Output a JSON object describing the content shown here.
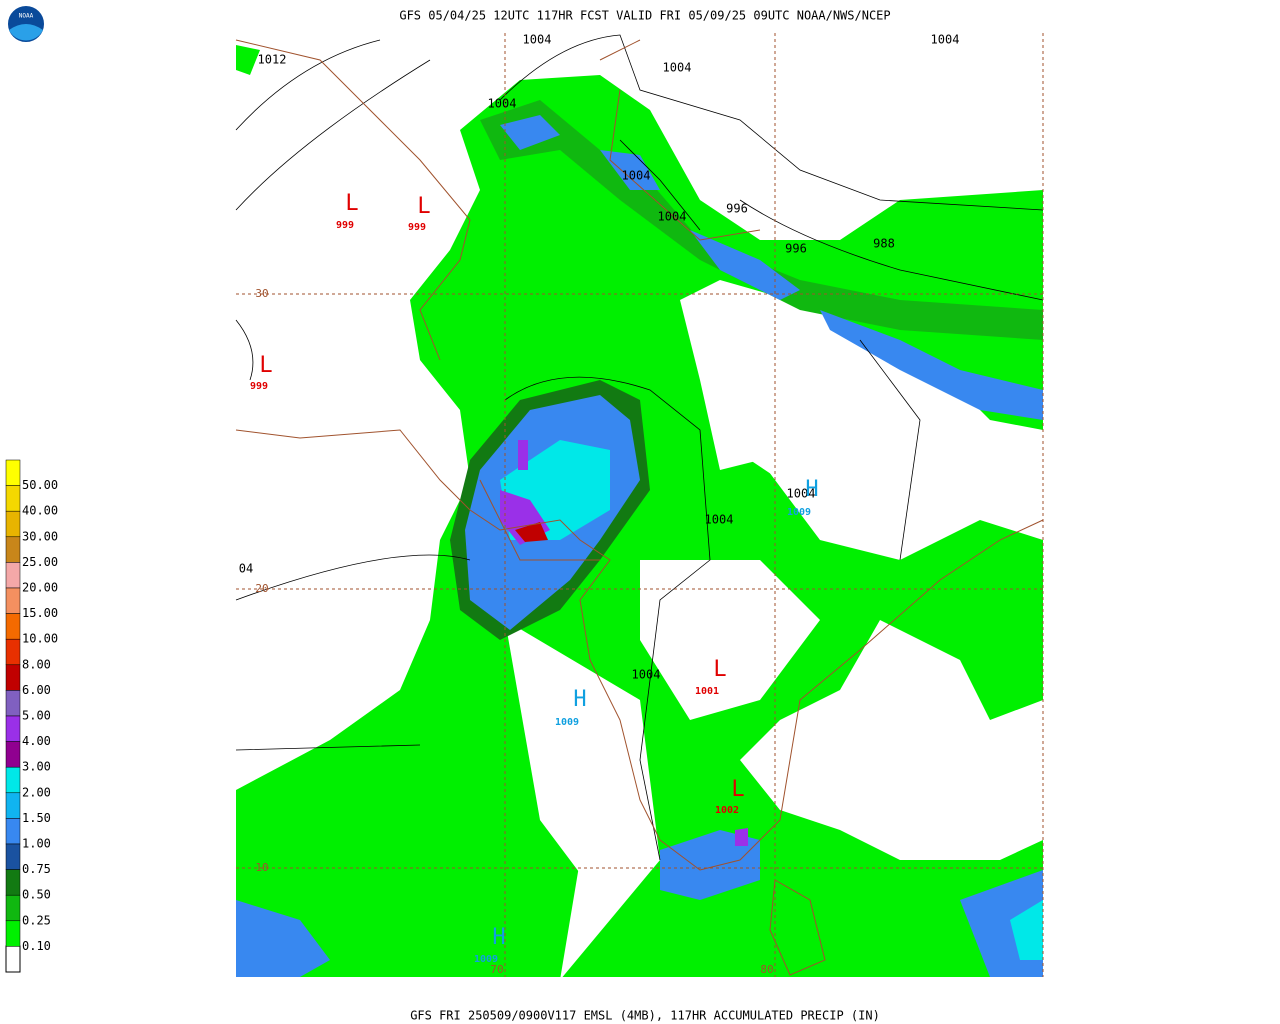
{
  "header": {
    "title": "GFS 05/04/25 12UTC 117HR FCST VALID FRI 05/09/25 09UTC NOAA/NWS/NCEP",
    "logo": "NOAA"
  },
  "footer": "GFS FRI 250509/0900V117 EMSL (4MB), 117HR ACCUMULATED PRECIP (IN)",
  "legend": {
    "items": [
      {
        "label": "50.00",
        "color": "#ffff00"
      },
      {
        "label": "40.00",
        "color": "#f4d800"
      },
      {
        "label": "30.00",
        "color": "#e8b400"
      },
      {
        "label": "25.00",
        "color": "#c8861a"
      },
      {
        "label": "20.00",
        "color": "#f4a8a8"
      },
      {
        "label": "15.00",
        "color": "#f49060"
      },
      {
        "label": "10.00",
        "color": "#f46a00"
      },
      {
        "label": "8.00",
        "color": "#e83000"
      },
      {
        "label": "6.00",
        "color": "#c00000"
      },
      {
        "label": "5.00",
        "color": "#8060c0"
      },
      {
        "label": "4.00",
        "color": "#9a30e8"
      },
      {
        "label": "3.00",
        "color": "#900090"
      },
      {
        "label": "2.00",
        "color": "#00e8e8"
      },
      {
        "label": "1.50",
        "color": "#10b4f0"
      },
      {
        "label": "1.00",
        "color": "#3888f0"
      },
      {
        "label": "0.75",
        "color": "#1a52a0"
      },
      {
        "label": "0.50",
        "color": "#127a12"
      },
      {
        "label": "0.25",
        "color": "#10b810"
      },
      {
        "label": "0.10",
        "color": "#00f000"
      }
    ]
  },
  "map": {
    "isobars": [
      "1012",
      "1004",
      "1004",
      "1004",
      "1004",
      "1004",
      "1004",
      "996",
      "996",
      "988",
      "1004",
      "1004",
      "1004",
      "04"
    ],
    "lows": [
      {
        "symbol": "L",
        "pressure": "999"
      },
      {
        "symbol": "L",
        "pressure": "999"
      },
      {
        "symbol": "L",
        "pressure": "999"
      },
      {
        "symbol": "L",
        "pressure": "1001"
      },
      {
        "symbol": "L",
        "pressure": "1002"
      }
    ],
    "highs": [
      {
        "symbol": "H",
        "pressure": "1009"
      },
      {
        "symbol": "H",
        "pressure": "1009"
      },
      {
        "symbol": "H",
        "pressure": "1009"
      }
    ],
    "latitudes": [
      "30",
      "20",
      "10"
    ],
    "longitudes": [
      "70",
      "80"
    ]
  }
}
